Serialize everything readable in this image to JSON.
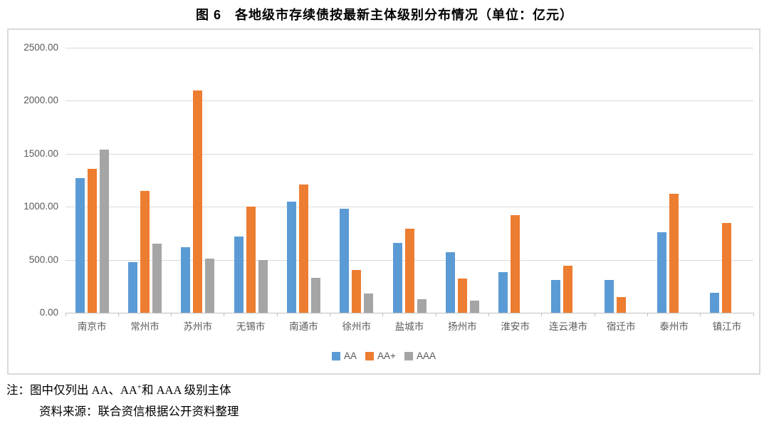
{
  "figure": {
    "title": "图 6　各地级市存续债按最新主体级别分布情况（单位：亿元）"
  },
  "notes": {
    "note_pre": "注：图中仅列出 AA、AA",
    "note_sup": "+",
    "note_post": "和 AAA 级别主体",
    "source": "资料来源：联合资信根据公开资料整理"
  },
  "chart_data": {
    "type": "bar",
    "title": "图 6　各地级市存续债按最新主体级别分布情况（单位：亿元）",
    "categories": [
      "南京市",
      "常州市",
      "苏州市",
      "无锡市",
      "南通市",
      "徐州市",
      "盐城市",
      "扬州市",
      "淮安市",
      "连云港市",
      "宿迁市",
      "泰州市",
      "镇江市"
    ],
    "series": [
      {
        "name": "AA",
        "color": "#5B9BD5",
        "values": [
          1270,
          480,
          620,
          720,
          1050,
          980,
          660,
          570,
          380,
          310,
          310,
          760,
          190
        ]
      },
      {
        "name": "AA+",
        "color": "#ED7D31",
        "values": [
          1360,
          1150,
          2100,
          1000,
          1210,
          400,
          790,
          325,
          920,
          445,
          145,
          1120,
          845
        ]
      },
      {
        "name": "AAA",
        "color": "#A5A5A5",
        "values": [
          1540,
          650,
          510,
          500,
          330,
          180,
          125,
          115,
          0,
          0,
          0,
          0,
          0
        ]
      }
    ],
    "ylim": [
      0,
      2500
    ],
    "yticks": [
      {
        "value": 0,
        "label": "0.00"
      },
      {
        "value": 500,
        "label": "500.00"
      },
      {
        "value": 1000,
        "label": "1000.00"
      },
      {
        "value": 1500,
        "label": "1500.00"
      },
      {
        "value": 2000,
        "label": "2000.00"
      },
      {
        "value": 2500,
        "label": "2500.00"
      }
    ],
    "grid": true,
    "legend_position": "bottom",
    "colors": {
      "gridline": "#D9D9D9",
      "axis_line": "#BFBFBF",
      "tick_label": "#595959",
      "chart_border": "#D9D9D9"
    }
  }
}
